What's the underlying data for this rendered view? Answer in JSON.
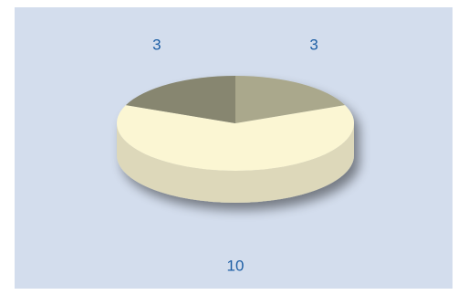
{
  "chart_data": {
    "type": "pie",
    "style": "3d",
    "title": "",
    "slices": [
      {
        "value": 3,
        "label": "3",
        "color": "#aaa88c"
      },
      {
        "value": 10,
        "label": "10",
        "color": "#fbf6d3"
      },
      {
        "value": 3,
        "label": "3",
        "color": "#878670"
      }
    ],
    "background_color": "#d3dded",
    "label_color": "#1e5fa5",
    "legend": "none"
  }
}
